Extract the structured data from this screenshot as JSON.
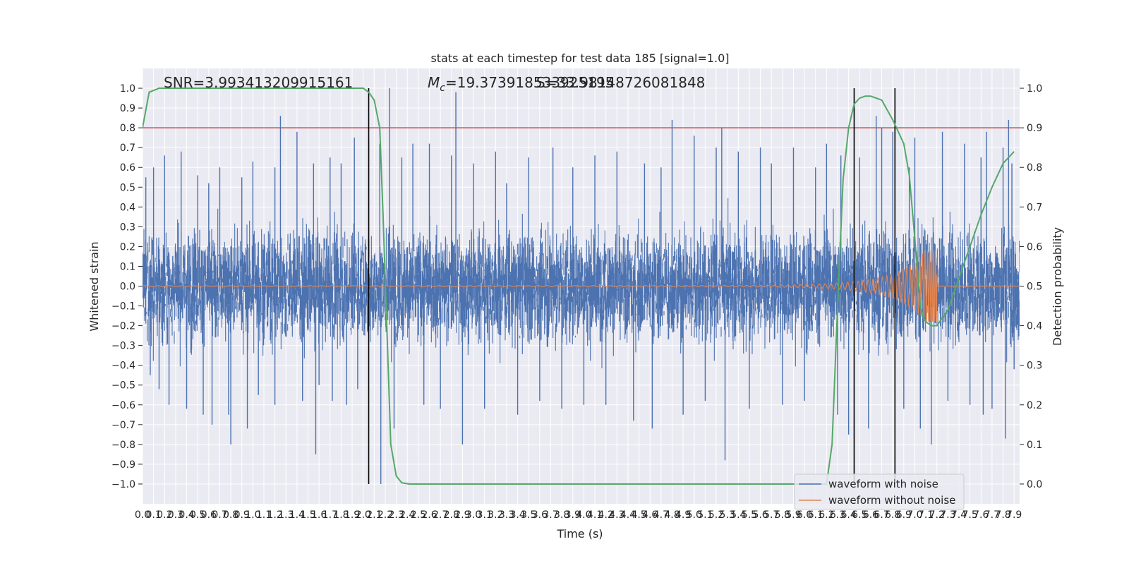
{
  "chart_data": {
    "type": "line",
    "title": "stats at each timestep for test data 185 [signal=1.0]",
    "xlabel": "Time (s)",
    "ylabel": "Whitened strain",
    "ylabel_right": "Detection probability",
    "xlim": [
      0.0,
      7.95
    ],
    "ylim": [
      -1.1,
      1.1
    ],
    "ylim_right": [
      -0.05,
      1.05
    ],
    "x_ticks": [
      0.0,
      0.1,
      0.2,
      0.3,
      0.4,
      0.5,
      0.6,
      0.7,
      0.8,
      0.9,
      1.0,
      1.1,
      1.2,
      1.3,
      1.4,
      1.5,
      1.6,
      1.7,
      1.8,
      1.9,
      2.0,
      2.1,
      2.2,
      2.3,
      2.4,
      2.5,
      2.6,
      2.7,
      2.8,
      2.9,
      3.0,
      3.1,
      3.2,
      3.3,
      3.4,
      3.5,
      3.6,
      3.7,
      3.8,
      3.9,
      4.0,
      4.1,
      4.2,
      4.3,
      4.4,
      4.5,
      4.6,
      4.7,
      4.8,
      4.9,
      5.0,
      5.1,
      5.2,
      5.3,
      5.4,
      5.5,
      5.6,
      5.7,
      5.8,
      5.9,
      6.0,
      6.1,
      6.2,
      6.3,
      6.4,
      6.5,
      6.6,
      6.7,
      6.8,
      6.9,
      7.0,
      7.1,
      7.2,
      7.3,
      7.4,
      7.5,
      7.6,
      7.7,
      7.8,
      7.9
    ],
    "x_tick_labels": [
      "0.0",
      "0.1",
      "0.2",
      "0.3",
      "0.4",
      "0.5",
      "0.6",
      "0.7",
      "0.8",
      "0.9",
      "1.0",
      "1.1",
      "1.2",
      "1.3",
      "1.4",
      "1.5",
      "1.6",
      "1.7",
      "1.8",
      "1.9",
      "2.0",
      "2.1",
      "2.2",
      "2.3",
      "2.4",
      "2.5",
      "2.6",
      "2.7",
      "2.8",
      "2.9",
      "3.0",
      "3.1",
      "3.2",
      "3.3",
      "3.4",
      "3.5",
      "3.6",
      "3.7",
      "3.8",
      "3.9",
      "4.0",
      "4.1",
      "4.2",
      "4.3",
      "4.4",
      "4.5",
      "4.6",
      "4.7",
      "4.8",
      "4.9",
      "5.0",
      "5.1",
      "5.2",
      "5.3",
      "5.4",
      "5.5",
      "5.6",
      "5.7",
      "5.8",
      "5.9",
      "6.0",
      "6.1",
      "6.2",
      "6.3",
      "6.4",
      "6.5",
      "6.6",
      "6.7",
      "6.8",
      "6.9",
      "7.0",
      "7.1",
      "7.2",
      "7.3",
      "7.4",
      "7.5",
      "7.6",
      "7.7",
      "7.8",
      "7.9"
    ],
    "y_ticks": [
      -1.0,
      -0.9,
      -0.8,
      -0.7,
      -0.6,
      -0.5,
      -0.4,
      -0.3,
      -0.2,
      -0.1,
      0.0,
      0.1,
      0.2,
      0.3,
      0.4,
      0.5,
      0.6,
      0.7,
      0.8,
      0.9,
      1.0
    ],
    "y_tick_labels": [
      "−1.0",
      "−0.9",
      "−0.8",
      "−0.7",
      "−0.6",
      "−0.5",
      "−0.4",
      "−0.3",
      "−0.2",
      "−0.1",
      "0.0",
      "0.1",
      "0.2",
      "0.3",
      "0.4",
      "0.5",
      "0.6",
      "0.7",
      "0.8",
      "0.9",
      "1.0"
    ],
    "y_right_ticks": [
      0.0,
      0.1,
      0.2,
      0.3,
      0.4,
      0.5,
      0.6,
      0.7,
      0.8,
      0.9,
      1.0
    ],
    "y_right_tick_labels": [
      "0.0",
      "0.1",
      "0.2",
      "0.3",
      "0.4",
      "0.5",
      "0.6",
      "0.7",
      "0.8",
      "0.9",
      "1.0"
    ],
    "grid": true,
    "legend_position": "lower-right",
    "annotations": {
      "snr": "SNR=3.993413209915161",
      "mc_symbol": "M",
      "mc_subscript": "c",
      "mc_value": "=19.373918533925195",
      "overlap_text": "S=33.98148726081848"
    },
    "series": [
      {
        "name": "waveform with noise",
        "color": "#4c72b0",
        "noise_band_sd": 0.13,
        "spikes": [
          [
            0.03,
            0.55
          ],
          [
            0.07,
            -0.45
          ],
          [
            0.1,
            0.6
          ],
          [
            0.15,
            -0.52
          ],
          [
            0.2,
            0.66
          ],
          [
            0.24,
            -0.6
          ],
          [
            0.35,
            0.68
          ],
          [
            0.4,
            -0.62
          ],
          [
            0.5,
            0.56
          ],
          [
            0.55,
            -0.65
          ],
          [
            0.6,
            0.52
          ],
          [
            0.63,
            -0.7
          ],
          [
            0.7,
            0.6
          ],
          [
            0.78,
            -0.65
          ],
          [
            0.8,
            -0.8
          ],
          [
            0.9,
            0.55
          ],
          [
            0.95,
            -0.72
          ],
          [
            1.0,
            0.63
          ],
          [
            1.05,
            -0.55
          ],
          [
            1.2,
            0.6
          ],
          [
            1.2,
            -0.6
          ],
          [
            1.25,
            0.86
          ],
          [
            1.4,
            0.78
          ],
          [
            1.45,
            -0.58
          ],
          [
            1.55,
            0.62
          ],
          [
            1.57,
            -0.85
          ],
          [
            1.6,
            -0.5
          ],
          [
            1.7,
            0.65
          ],
          [
            1.72,
            -0.58
          ],
          [
            1.8,
            0.62
          ],
          [
            1.85,
            -0.6
          ],
          [
            1.92,
            0.75
          ],
          [
            1.95,
            -0.52
          ],
          [
            2.05,
            0.74
          ],
          [
            2.15,
            0.72
          ],
          [
            2.16,
            -1.0
          ],
          [
            2.24,
            1.0
          ],
          [
            2.28,
            -0.72
          ],
          [
            2.35,
            0.65
          ],
          [
            2.45,
            0.72
          ],
          [
            2.55,
            -0.6
          ],
          [
            2.6,
            0.72
          ],
          [
            2.7,
            -0.62
          ],
          [
            2.8,
            0.66
          ],
          [
            2.84,
            0.98
          ],
          [
            2.9,
            -0.8
          ],
          [
            3.0,
            0.62
          ],
          [
            3.1,
            -0.62
          ],
          [
            3.2,
            0.68
          ],
          [
            3.3,
            0.52
          ],
          [
            3.4,
            -0.65
          ],
          [
            3.5,
            0.65
          ],
          [
            3.6,
            -0.58
          ],
          [
            3.72,
            0.7
          ],
          [
            3.8,
            -0.62
          ],
          [
            3.9,
            0.6
          ],
          [
            4.0,
            -0.6
          ],
          [
            4.1,
            0.66
          ],
          [
            4.2,
            -0.6
          ],
          [
            4.3,
            0.68
          ],
          [
            4.45,
            -0.68
          ],
          [
            4.55,
            0.62
          ],
          [
            4.62,
            -0.72
          ],
          [
            4.7,
            0.6
          ],
          [
            4.8,
            0.84
          ],
          [
            4.9,
            -0.65
          ],
          [
            5.0,
            0.76
          ],
          [
            5.1,
            -0.58
          ],
          [
            5.2,
            0.7
          ],
          [
            5.25,
            0.8
          ],
          [
            5.28,
            -0.88
          ],
          [
            5.4,
            0.68
          ],
          [
            5.5,
            -0.62
          ],
          [
            5.6,
            0.7
          ],
          [
            5.7,
            0.62
          ],
          [
            5.8,
            -0.6
          ],
          [
            5.9,
            0.7
          ],
          [
            6.0,
            -0.58
          ],
          [
            6.1,
            0.6
          ],
          [
            6.2,
            0.72
          ],
          [
            6.3,
            -0.65
          ],
          [
            6.33,
            0.66
          ],
          [
            6.4,
            -0.75
          ],
          [
            6.5,
            0.65
          ],
          [
            6.58,
            -0.72
          ],
          [
            6.65,
            0.86
          ],
          [
            6.7,
            0.8
          ],
          [
            6.8,
            0.78
          ],
          [
            6.9,
            -0.62
          ],
          [
            6.95,
            0.6
          ],
          [
            7.0,
            0.75
          ],
          [
            7.05,
            -0.72
          ],
          [
            7.15,
            -0.8
          ],
          [
            7.25,
            0.78
          ],
          [
            7.3,
            -0.58
          ],
          [
            7.45,
            0.72
          ],
          [
            7.5,
            -0.6
          ],
          [
            7.6,
            0.65
          ],
          [
            7.62,
            -0.65
          ],
          [
            7.65,
            0.78
          ],
          [
            7.7,
            -0.62
          ],
          [
            7.8,
            0.7
          ],
          [
            7.82,
            -0.77
          ],
          [
            7.85,
            0.84
          ],
          [
            7.88,
            0.62
          ],
          [
            7.9,
            -0.42
          ]
        ]
      },
      {
        "name": "waveform without noise",
        "color": "#dd8452",
        "chirp": {
          "t_start": 0.0,
          "t_merger": 7.2,
          "amp_start": 0.002,
          "amp_peak": 0.18,
          "f_start": 9,
          "f_peak": 60
        }
      },
      {
        "name": "detection probability",
        "color": "#55a868",
        "axis": "right",
        "x": [
          0.0,
          0.06,
          0.15,
          0.3,
          0.6,
          1.0,
          1.5,
          1.9,
          2.0,
          2.05,
          2.1,
          2.15,
          2.18,
          2.22,
          2.25,
          2.3,
          2.35,
          2.42,
          2.5,
          2.6,
          3.0,
          4.0,
          5.0,
          6.0,
          6.2,
          6.25,
          6.3,
          6.35,
          6.4,
          6.45,
          6.5,
          6.55,
          6.6,
          6.7,
          6.8,
          6.9,
          6.95,
          7.0,
          7.05,
          7.08,
          7.1,
          7.15,
          7.2,
          7.3,
          7.4,
          7.5,
          7.6,
          7.7,
          7.8,
          7.9
        ],
        "y": [
          0.9,
          0.99,
          1.0,
          1.0,
          1.0,
          1.0,
          1.0,
          1.0,
          1.0,
          0.99,
          0.97,
          0.9,
          0.68,
          0.35,
          0.1,
          0.02,
          0.003,
          0.0,
          0.0,
          0.0,
          0.0,
          0.0,
          0.0,
          0.0,
          0.0,
          0.1,
          0.45,
          0.77,
          0.9,
          0.96,
          0.975,
          0.98,
          0.98,
          0.97,
          0.92,
          0.86,
          0.78,
          0.62,
          0.45,
          0.42,
          0.41,
          0.4,
          0.4,
          0.44,
          0.52,
          0.6,
          0.68,
          0.75,
          0.81,
          0.84
        ]
      }
    ],
    "reference_lines": {
      "threshold_y_right": 0.9,
      "threshold_color": "#c44e52",
      "vertical_lines_x": [
        2.05,
        6.45,
        6.82
      ],
      "vertical_color": "#000000"
    }
  }
}
